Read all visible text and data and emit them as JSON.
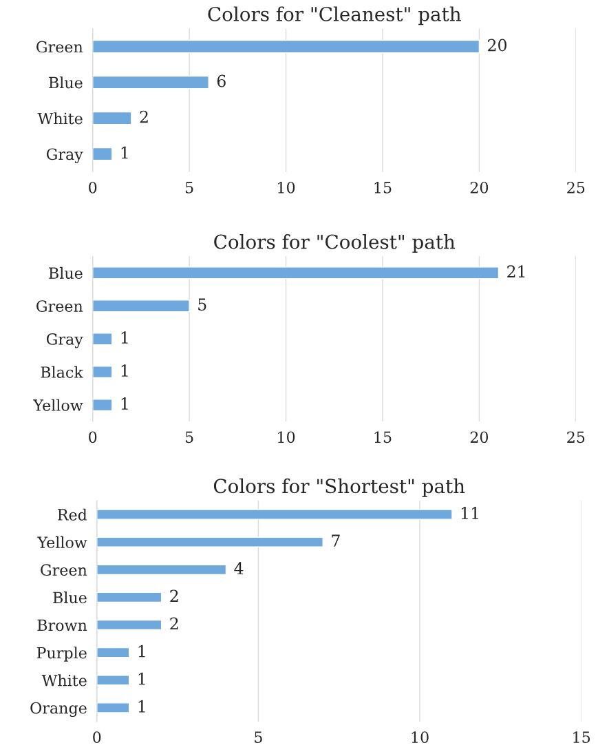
{
  "chart_data": [
    {
      "type": "bar",
      "orientation": "horizontal",
      "title": "Colors for \"Cleanest\" path",
      "categories": [
        "Green",
        "Blue",
        "White",
        "Gray"
      ],
      "values": [
        20,
        6,
        2,
        1
      ],
      "color": "#6fa8dc",
      "xlim": [
        0,
        25
      ],
      "xticks": [
        0,
        5,
        10,
        15,
        20,
        25
      ],
      "grid": "x",
      "data_labels": true
    },
    {
      "type": "bar",
      "orientation": "horizontal",
      "title": "Colors for \"Coolest\" path",
      "categories": [
        "Blue",
        "Green",
        "Gray",
        "Black",
        "Yellow"
      ],
      "values": [
        21,
        5,
        1,
        1,
        1
      ],
      "color": "#6fa8dc",
      "xlim": [
        0,
        25
      ],
      "xticks": [
        0,
        5,
        10,
        15,
        20,
        25
      ],
      "grid": "x",
      "data_labels": true
    },
    {
      "type": "bar",
      "orientation": "horizontal",
      "title": "Colors for \"Shortest\" path",
      "categories": [
        "Red",
        "Yellow",
        "Green",
        "Blue",
        "Brown",
        "Purple",
        "White",
        "Orange"
      ],
      "values": [
        11,
        7,
        4,
        2,
        2,
        1,
        1,
        1
      ],
      "color": "#6fa8dc",
      "xlim": [
        0,
        15
      ],
      "xticks": [
        0,
        5,
        10,
        15
      ],
      "grid": "x",
      "data_labels": true
    }
  ]
}
